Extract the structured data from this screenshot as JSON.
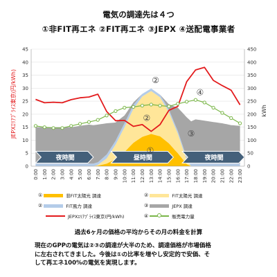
{
  "header": {
    "title": "電気の調達先は４つ",
    "subtitle": "①非FIT再エネ ②FIT再エネ ③JEPX ④送配電事業者"
  },
  "colors": {
    "solar_nonfit": "#ffc000",
    "solar_fit": "#ffe699",
    "wind_fit": "#b4cce9",
    "jepx": "#a6a6a6",
    "price_line": "#e31a1c",
    "demand_line": "#7ab648",
    "band": "#44607a"
  },
  "chart_data": {
    "type": "area",
    "x": [
      "0:00",
      "1:00",
      "2:00",
      "3:00",
      "4:00",
      "5:00",
      "6:00",
      "7:00",
      "8:00",
      "9:00",
      "10:00",
      "11:00",
      "12:00",
      "13:00",
      "14:00",
      "15:00",
      "16:00",
      "17:00",
      "18:00",
      "19:00",
      "20:00",
      "21:00",
      "22:00",
      "23:00"
    ],
    "ylabel": "JEPXｴﾘｱﾌﾟﾗｲｽ東京(円/kWh)",
    "y2label": "kWh",
    "ylim": [
      0,
      45
    ],
    "yticks": [
      0,
      5,
      10,
      15,
      20,
      25,
      30,
      35,
      40,
      45
    ],
    "y2lim": [
      0,
      450
    ],
    "y2ticks": [
      0,
      50,
      100,
      150,
      200,
      250,
      300,
      350,
      400,
      450
    ],
    "grid": true,
    "stacked_series": [
      {
        "id": "solar_nonfit",
        "marker": "①",
        "name": "非FIT太陽光 調達",
        "x": [
          6.5,
          7,
          8,
          9,
          10,
          11,
          12,
          13,
          14,
          15,
          16,
          17,
          17.5
        ],
        "values": [
          0,
          2,
          10,
          28,
          55,
          90,
          113,
          124,
          115,
          88,
          50,
          8,
          0
        ]
      },
      {
        "id": "solar_fit",
        "marker": "②",
        "name": "FIT太陽光 調達",
        "x": [
          6.5,
          7,
          8,
          9,
          10,
          11,
          12,
          13,
          14,
          15,
          16,
          17,
          17.5
        ],
        "values": [
          0,
          3,
          20,
          55,
          95,
          130,
          155,
          165,
          150,
          120,
          75,
          15,
          0
        ]
      },
      {
        "id": "wind_fit",
        "marker": "②",
        "name": "FIT風力 調達",
        "x": [
          0,
          1,
          2,
          3,
          4,
          5,
          6,
          7,
          8,
          9,
          10,
          11,
          12,
          13,
          14,
          15,
          16,
          17,
          18,
          19,
          20,
          21,
          22,
          23
        ],
        "values": [
          10,
          10,
          10,
          10,
          10,
          10,
          10,
          10,
          15,
          15,
          15,
          15,
          10,
          10,
          10,
          10,
          10,
          10,
          10,
          10,
          10,
          10,
          10,
          10
        ]
      },
      {
        "id": "jepx",
        "marker": "③",
        "name": "JEPX 調達",
        "x": [
          0,
          1,
          2,
          3,
          4,
          5,
          6,
          7,
          8,
          9,
          10,
          11,
          12,
          13,
          14,
          15,
          16,
          17,
          18,
          19,
          20,
          21,
          22,
          23
        ],
        "values": [
          140,
          140,
          140,
          140,
          140,
          145,
          150,
          145,
          120,
          70,
          30,
          10,
          0,
          0,
          0,
          20,
          90,
          155,
          170,
          165,
          160,
          155,
          148,
          145
        ]
      }
    ],
    "line_series": [
      {
        "id": "price",
        "name": "JEPXｴﾘｱﾌﾟﾗｲｽ東京(円/kWh)",
        "axis": "left",
        "values": [
          25.7,
          24.4,
          24.6,
          24.4,
          25.6,
          26.3,
          26.6,
          27.7,
          21.0,
          17.5,
          17.6,
          15.3,
          16.0,
          13.4,
          16.0,
          21.5,
          23.0,
          32.5,
          37.0,
          38.0,
          33.0,
          31.0,
          29.2,
          23.6
        ]
      },
      {
        "id": "demand",
        "marker": "④",
        "name": "販売電力量",
        "axis": "right",
        "values": [
          155,
          150,
          147,
          147,
          155,
          163,
          170,
          178,
          195,
          212,
          225,
          228,
          233,
          237,
          233,
          230,
          240,
          248,
          255,
          245,
          225,
          205,
          185,
          165
        ]
      }
    ],
    "annotations": [
      {
        "text": "①",
        "x": 12.9,
        "y": 60
      },
      {
        "text": "②",
        "x": 12.5,
        "y": 185
      },
      {
        "text": "②",
        "x": 13.5,
        "y": 330
      },
      {
        "text": "③",
        "x": 17.5,
        "y": 125
      },
      {
        "text": "④",
        "x": 18.5,
        "y": 283
      }
    ],
    "bands": [
      {
        "label": "夜時間",
        "from": 0,
        "to": 6.5
      },
      {
        "label": "昼時間",
        "from": 8.5,
        "to": 15.5
      },
      {
        "label": "夜時間",
        "from": 16.5,
        "to": 23.5
      }
    ]
  },
  "legend": {
    "items": [
      {
        "marker": "①",
        "label": "非FIT太陽光 調達"
      },
      {
        "marker": "②",
        "label": "FIT太陽光 調達"
      },
      {
        "marker": "②",
        "label": "FIT風力 調達"
      },
      {
        "marker": "③",
        "label": "JEPX 調達"
      },
      {
        "marker": "",
        "label": "JEPXｴﾘｱﾌﾟﾗｲｽ東京(円/kWh)"
      },
      {
        "marker": "④",
        "label": "販売電力量"
      }
    ]
  },
  "footer": {
    "subtitle": "過去6ヶ月の価格の平均からその月の料金を計算",
    "lines": [
      "現在のGPPの電気は②③の調達が大半のため、調達価格が市場価格",
      "に左右されてきました。今後は①の比率を増やし安定的で安価、そ",
      "して再エネ100%の電気を実現します。"
    ]
  }
}
